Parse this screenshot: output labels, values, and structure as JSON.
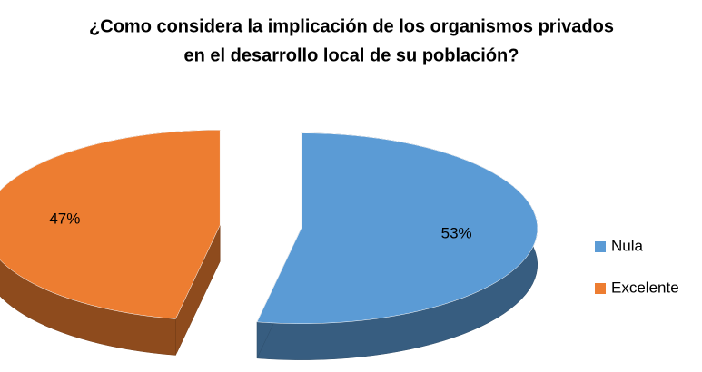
{
  "chart_data": {
    "type": "pie",
    "title": [
      "¿Como considera la implicación de los organismos privados",
      "en el desarrollo local de su población?"
    ],
    "categories": [
      "Nula",
      "Excelente"
    ],
    "values": [
      53,
      47
    ],
    "value_labels": [
      "53%",
      "47%"
    ],
    "colors": [
      "#5b9bd5",
      "#ed7d31"
    ],
    "legend": "right"
  }
}
